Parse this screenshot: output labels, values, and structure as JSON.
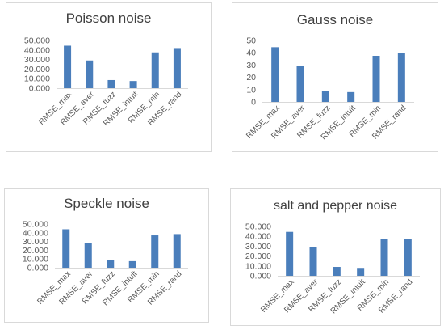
{
  "charts": [
    {
      "title": "Poisson noise"
    },
    {
      "title": "Gauss noise"
    },
    {
      "title": "Speckle noise"
    },
    {
      "title": "salt and pepper noise"
    }
  ],
  "colors": {
    "bar": "#4a7ebb",
    "axis": "#d9d9d9",
    "text": "#595959",
    "title": "#404040"
  },
  "chart_data": [
    {
      "type": "bar",
      "title": "Poisson noise",
      "categories": [
        "RMSE_max",
        "RMSE_aver",
        "RMSE_fuzz",
        "RMSE_intuit",
        "RMSE_min",
        "RMSE_rand"
      ],
      "values": [
        44.5,
        29.0,
        8.5,
        7.5,
        37.5,
        42.0
      ],
      "yticks": [
        "0.000",
        "10.000",
        "20.000",
        "30.000",
        "40.000",
        "50.000"
      ],
      "ylim": [
        0,
        50
      ],
      "grid": false
    },
    {
      "type": "bar",
      "title": "Gauss noise",
      "categories": [
        "RMSE_max",
        "RMSE_aver",
        "RMSE_fuzz",
        "RMSE_intuit",
        "RMSE_min",
        "RMSE_rand"
      ],
      "values": [
        44.5,
        29.5,
        9.0,
        8.0,
        37.5,
        40.0
      ],
      "yticks": [
        "0",
        "10",
        "20",
        "30",
        "40",
        "50"
      ],
      "ylim": [
        0,
        50
      ],
      "grid": false
    },
    {
      "type": "bar",
      "title": "Speckle noise",
      "categories": [
        "RMSE_max",
        "RMSE_aver",
        "RMSE_fuzz",
        "RMSE_intuit",
        "RMSE_min",
        "RMSE_rand"
      ],
      "values": [
        44.0,
        28.5,
        9.0,
        7.5,
        37.0,
        38.5
      ],
      "yticks": [
        "0.000",
        "10.000",
        "20.000",
        "30.000",
        "40.000",
        "50.000"
      ],
      "ylim": [
        0,
        50
      ],
      "grid": false
    },
    {
      "type": "bar",
      "title": "salt and pepper noise",
      "categories": [
        "RMSE_max",
        "RMSE_aver",
        "RMSE_fuzz",
        "RMSE_intuit",
        "RMSE_min",
        "RMSE_rand"
      ],
      "values": [
        44.5,
        29.5,
        9.0,
        8.0,
        37.5,
        37.5
      ],
      "yticks": [
        "0.000",
        "10.000",
        "20.000",
        "30.000",
        "40.000",
        "50.000"
      ],
      "ylim": [
        0,
        50
      ],
      "grid": false
    }
  ]
}
